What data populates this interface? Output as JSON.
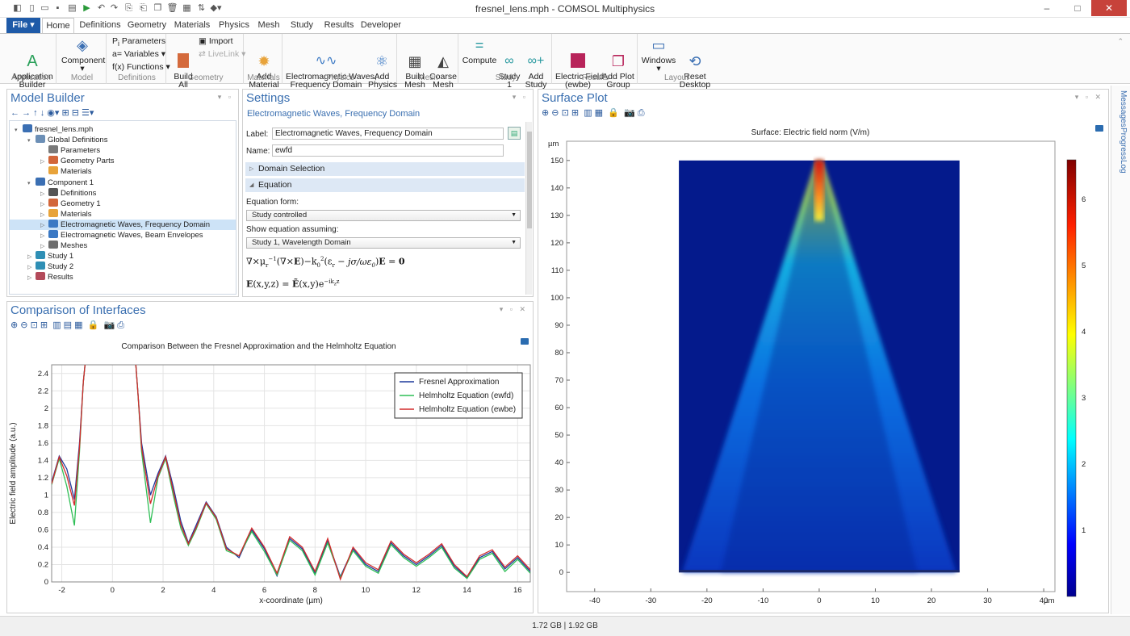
{
  "window": {
    "title": "fresnel_lens.mph - COMSOL Multiphysics"
  },
  "tabs": [
    "Home",
    "Definitions",
    "Geometry",
    "Materials",
    "Physics",
    "Mesh",
    "Study",
    "Results",
    "Developer"
  ],
  "file_tab": "File ▾",
  "ribbon": {
    "app_builder": "Application\nBuilder",
    "component": "Component",
    "parameters": "Parameters",
    "variables": "Variables",
    "functions": "Functions",
    "build_all": "Build\nAll",
    "import": "Import",
    "livelink": "LiveLink",
    "add_material": "Add\nMaterial",
    "em_waves": "Electromagnetic Waves,\nFrequency Domain",
    "add_physics": "Add\nPhysics",
    "build_mesh": "Build\nMesh",
    "coarse_mesh": "Coarse\nMesh",
    "compute": "Compute",
    "study1": "Study\n1",
    "add_study": "Add\nStudy",
    "electric_field": "Electric Field\n(ewbe)",
    "add_plot_group": "Add Plot\nGroup",
    "windows": "Windows",
    "reset_desktop": "Reset\nDesktop",
    "groups": [
      "Application",
      "Model",
      "Definitions",
      "Geometry",
      "Materials",
      "Physics",
      "Mesh",
      "Study",
      "Results",
      "Layout"
    ]
  },
  "model_builder": {
    "title": "Model Builder",
    "tree": [
      {
        "label": "fresnel_lens.mph",
        "indent": 0,
        "exp": "▾",
        "icon": "#3b6fb3"
      },
      {
        "label": "Global Definitions",
        "indent": 1,
        "exp": "▾",
        "icon": "#6c8fb6"
      },
      {
        "label": "Parameters",
        "indent": 2,
        "exp": "",
        "icon": "#7a7a7a"
      },
      {
        "label": "Geometry Parts",
        "indent": 2,
        "exp": "▷",
        "icon": "#d2663a"
      },
      {
        "label": "Materials",
        "indent": 2,
        "exp": "",
        "icon": "#e8a33a"
      },
      {
        "label": "Component 1",
        "indent": 1,
        "exp": "▾",
        "icon": "#3b6fb3"
      },
      {
        "label": "Definitions",
        "indent": 2,
        "exp": "▷",
        "icon": "#555555"
      },
      {
        "label": "Geometry 1",
        "indent": 2,
        "exp": "▷",
        "icon": "#d2663a"
      },
      {
        "label": "Materials",
        "indent": 2,
        "exp": "▷",
        "icon": "#e8a33a"
      },
      {
        "label": "Electromagnetic Waves, Frequency Domain",
        "indent": 2,
        "exp": "▷",
        "icon": "#3b79c4",
        "sel": true
      },
      {
        "label": "Electromagnetic Waves, Beam Envelopes",
        "indent": 2,
        "exp": "▷",
        "icon": "#3b79c4"
      },
      {
        "label": "Meshes",
        "indent": 2,
        "exp": "▷",
        "icon": "#6e6e6e"
      },
      {
        "label": "Study 1",
        "indent": 1,
        "exp": "▷",
        "icon": "#2f8fb5"
      },
      {
        "label": "Study 2",
        "indent": 1,
        "exp": "▷",
        "icon": "#2f8fb5"
      },
      {
        "label": "Results",
        "indent": 1,
        "exp": "▷",
        "icon": "#b34a5a"
      }
    ]
  },
  "settings": {
    "title": "Settings",
    "subtitle": "Electromagnetic Waves, Frequency Domain",
    "label_caption": "Label:",
    "label_value": "Electromagnetic Waves, Frequency Domain",
    "name_caption": "Name:",
    "name_value": "ewfd",
    "section_domain": "Domain Selection",
    "section_equation": "Equation",
    "eq_form_caption": "Equation form:",
    "eq_form_value": "Study controlled",
    "show_eq_caption": "Show equation assuming:",
    "show_eq_value": "Study 1, Wavelength Domain"
  },
  "comparison": {
    "title": "Comparison of Interfaces",
    "plot_title": "Comparison Between the Fresnel Approximation and the Helmholtz Equation",
    "xlabel": "x-coordinate (µm)",
    "ylabel": "Electric field amplitude (a.u.)",
    "legend": [
      "Fresnel Approximation",
      "Helmholtz Equation (ewfd)",
      "Helmholtz Equation (ewbe)"
    ],
    "colors": [
      "#1f3a9c",
      "#2fbf56",
      "#d22b2b"
    ]
  },
  "surface": {
    "title": "Surface Plot",
    "plot_title": "Surface: Electric field norm (V/m)",
    "unit_y": "µm",
    "unit_x": "µm",
    "colorbar_ticks": [
      "1",
      "2",
      "3",
      "4",
      "5",
      "6"
    ]
  },
  "side_tabs": [
    "Messages",
    "Progress",
    "Log"
  ],
  "status": "1.72 GB | 1.92 GB",
  "chart_data": [
    {
      "type": "line",
      "title": "Comparison Between the Fresnel Approximation and the Helmholtz Equation",
      "xlabel": "x-coordinate (µm)",
      "ylabel": "Electric field amplitude (a.u.)",
      "xlim": [
        -2.4,
        16.5
      ],
      "ylim": [
        0,
        2.5
      ],
      "xticks": [
        -2,
        0,
        2,
        4,
        6,
        8,
        10,
        12,
        14,
        16
      ],
      "yticks": [
        0,
        0.2,
        0.4,
        0.6,
        0.8,
        1,
        1.2,
        1.4,
        1.6,
        1.8,
        2,
        2.2,
        2.4
      ],
      "grid": true,
      "legend_position": "top-right",
      "series": [
        {
          "name": "Fresnel Approximation",
          "color": "#1f3a9c",
          "x": [
            -2.4,
            -2.1,
            -1.8,
            -1.5,
            -1.3,
            -1.15,
            -1.05,
            0.9,
            1.0,
            1.15,
            1.5,
            1.8,
            2.1,
            2.4,
            2.7,
            3.0,
            3.3,
            3.7,
            4.1,
            4.5,
            5.0,
            5.5,
            6.0,
            6.5,
            7.0,
            7.5,
            8.0,
            8.5,
            9.0,
            9.5,
            10.0,
            10.5,
            11.0,
            11.5,
            12.0,
            12.5,
            13.0,
            13.5,
            14.0,
            14.5,
            15.0,
            15.5,
            16.0,
            16.5
          ],
          "y": [
            1.15,
            1.45,
            1.3,
            0.95,
            1.6,
            2.3,
            2.6,
            2.6,
            2.2,
            1.6,
            1.0,
            1.25,
            1.45,
            1.1,
            0.7,
            0.45,
            0.65,
            0.92,
            0.75,
            0.4,
            0.28,
            0.6,
            0.38,
            0.07,
            0.5,
            0.38,
            0.1,
            0.47,
            0.06,
            0.38,
            0.2,
            0.12,
            0.45,
            0.3,
            0.2,
            0.3,
            0.42,
            0.18,
            0.05,
            0.28,
            0.35,
            0.15,
            0.28,
            0.12
          ]
        },
        {
          "name": "Helmholtz Equation (ewfd)",
          "color": "#2fbf56",
          "x": [
            -2.4,
            -2.1,
            -1.8,
            -1.5,
            -1.3,
            -1.15,
            -1.05,
            0.9,
            1.0,
            1.15,
            1.5,
            1.8,
            2.1,
            2.4,
            2.7,
            3.0,
            3.3,
            3.7,
            4.1,
            4.5,
            5.0,
            5.5,
            6.0,
            6.5,
            7.0,
            7.5,
            8.0,
            8.5,
            9.0,
            9.5,
            10.0,
            10.5,
            11.0,
            11.5,
            12.0,
            12.5,
            13.0,
            13.5,
            14.0,
            14.5,
            15.0,
            15.5,
            16.0,
            16.5
          ],
          "y": [
            1.12,
            1.42,
            1.1,
            0.65,
            1.5,
            2.3,
            2.6,
            2.6,
            2.2,
            1.5,
            0.68,
            1.2,
            1.42,
            1.0,
            0.62,
            0.42,
            0.6,
            0.9,
            0.72,
            0.36,
            0.3,
            0.58,
            0.35,
            0.08,
            0.48,
            0.36,
            0.08,
            0.45,
            0.05,
            0.36,
            0.18,
            0.1,
            0.43,
            0.28,
            0.18,
            0.28,
            0.4,
            0.16,
            0.04,
            0.26,
            0.33,
            0.12,
            0.26,
            0.1
          ]
        },
        {
          "name": "Helmholtz Equation (ewbe)",
          "color": "#d22b2b",
          "x": [
            -2.4,
            -2.1,
            -1.8,
            -1.5,
            -1.3,
            -1.15,
            -1.05,
            0.9,
            1.0,
            1.15,
            1.5,
            1.8,
            2.1,
            2.4,
            2.7,
            3.0,
            3.3,
            3.7,
            4.1,
            4.5,
            5.0,
            5.5,
            6.0,
            6.5,
            7.0,
            7.5,
            8.0,
            8.5,
            9.0,
            9.5,
            10.0,
            10.5,
            11.0,
            11.5,
            12.0,
            12.5,
            13.0,
            13.5,
            14.0,
            14.5,
            15.0,
            15.5,
            16.0,
            16.5
          ],
          "y": [
            1.13,
            1.44,
            1.22,
            0.88,
            1.55,
            2.3,
            2.6,
            2.6,
            2.2,
            1.55,
            0.9,
            1.22,
            1.44,
            1.05,
            0.66,
            0.44,
            0.62,
            0.91,
            0.74,
            0.38,
            0.3,
            0.62,
            0.4,
            0.1,
            0.52,
            0.4,
            0.12,
            0.5,
            0.03,
            0.4,
            0.22,
            0.14,
            0.47,
            0.32,
            0.22,
            0.32,
            0.44,
            0.2,
            0.06,
            0.3,
            0.37,
            0.17,
            0.3,
            0.14
          ]
        }
      ]
    },
    {
      "type": "heatmap",
      "title": "Surface: Electric field norm (V/m)",
      "xlabel": "µm",
      "ylabel": "µm",
      "xlim": [
        -45,
        42
      ],
      "ylim": [
        -7,
        157
      ],
      "xticks": [
        -40,
        -30,
        -20,
        -10,
        0,
        10,
        20,
        30,
        40
      ],
      "yticks": [
        0,
        10,
        20,
        30,
        40,
        50,
        60,
        70,
        80,
        90,
        100,
        110,
        120,
        130,
        140,
        150
      ],
      "domain": {
        "x": [
          -25,
          25
        ],
        "y": [
          0,
          150
        ]
      },
      "colorbar": {
        "min": 0,
        "max": 6.6,
        "ticks": [
          1,
          2,
          3,
          4,
          5,
          6
        ]
      },
      "grid": false
    }
  ]
}
